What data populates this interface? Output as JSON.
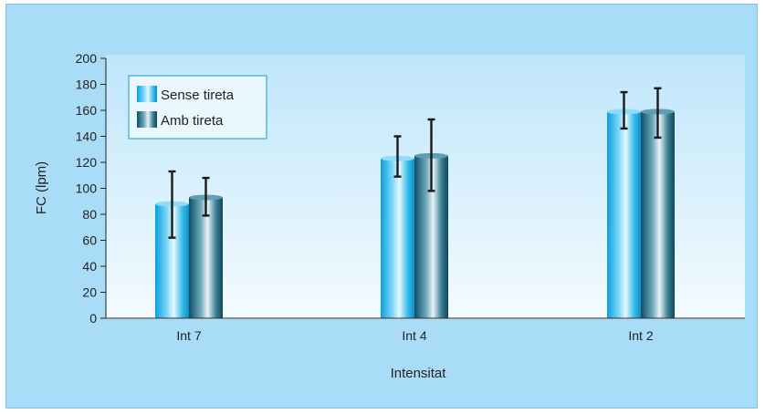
{
  "chart_data": {
    "type": "bar",
    "title": "",
    "xlabel": "Intensitat",
    "ylabel": "FC (lpm)",
    "ylim": [
      0,
      200
    ],
    "yticks": [
      0,
      20,
      40,
      60,
      80,
      100,
      120,
      140,
      160,
      180,
      200
    ],
    "categories": [
      "Int 7",
      "Int 4",
      "Int 2"
    ],
    "series": [
      {
        "name": "Sense tireta",
        "values": [
          88,
          123,
          159
        ],
        "error_low": [
          62,
          109,
          146
        ],
        "error_high": [
          113,
          140,
          174
        ],
        "color": "#1fb2e8"
      },
      {
        "name": "Amb tireta",
        "values": [
          93,
          125,
          159
        ],
        "error_low": [
          79,
          98,
          139
        ],
        "error_high": [
          108,
          153,
          177
        ],
        "color": "#2b7f96"
      }
    ],
    "legend_position": "top-left",
    "grid": false
  },
  "colors": {
    "panel_background": "#a8dcf7",
    "plot_background_top": "#bfe6fb",
    "plot_background_bottom": "#f4fbff",
    "legend_border": "#3aa6dd"
  }
}
